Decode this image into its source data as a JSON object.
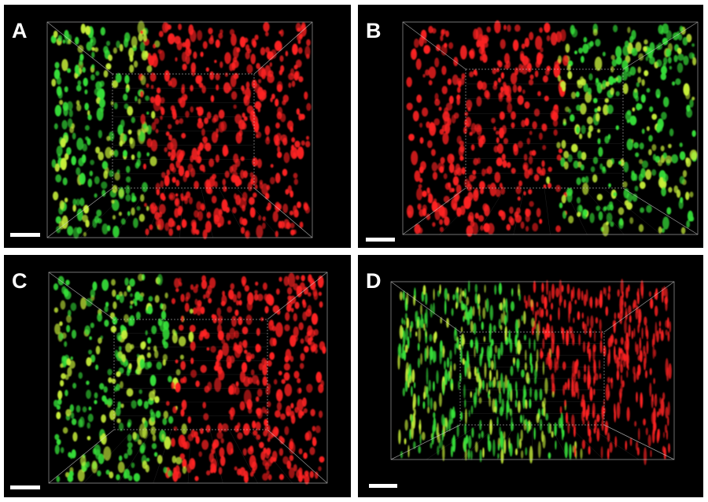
{
  "figure": {
    "panels": [
      {
        "id": "a",
        "label": "A",
        "green_side": "left",
        "boundary": 0.37,
        "speck_shape": "round"
      },
      {
        "id": "b",
        "label": "B",
        "green_side": "right",
        "boundary": 0.55,
        "speck_shape": "round"
      },
      {
        "id": "c",
        "label": "C",
        "green_side": "left",
        "boundary": 0.45,
        "speck_shape": "round"
      },
      {
        "id": "d",
        "label": "D",
        "green_side": "left",
        "boundary": 0.55,
        "speck_shape": "elongated"
      }
    ],
    "colors": {
      "background": "#000000",
      "green": "#37e23a",
      "yellow_green": "#c8f03a",
      "red": "#ff2222",
      "box_edges": "#d0d0d0",
      "scale_bar": "#ffffff",
      "label": "#ffffff"
    }
  }
}
